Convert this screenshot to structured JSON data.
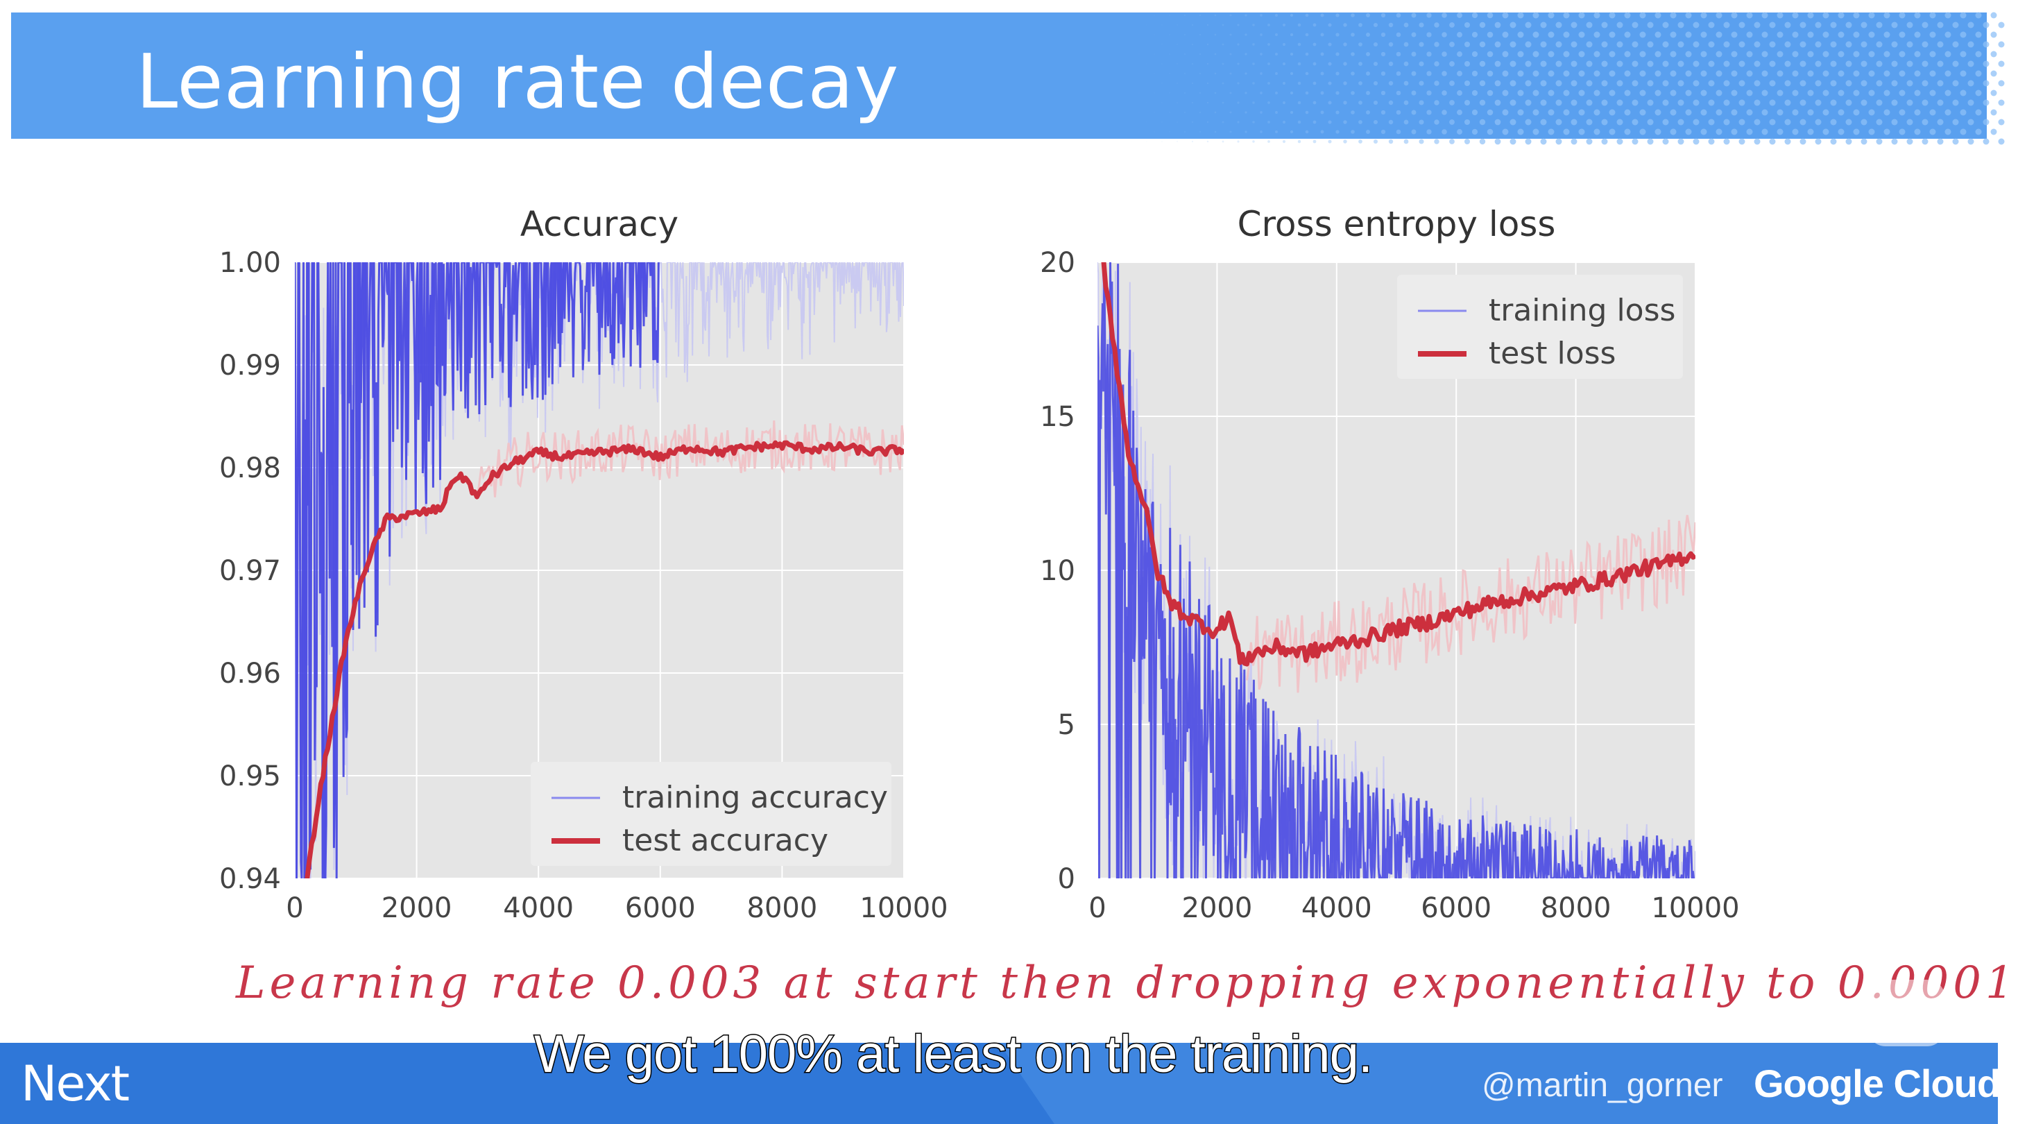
{
  "slide_title": "Learning rate decay",
  "subtitle": "Learning rate 0.003 at start then dropping exponentially to 0.0001",
  "caption": "We got 100% at least on the training.",
  "footer": {
    "event_logo": "Next",
    "handle": "@martin_gorner",
    "brand": "Google Cloud"
  },
  "icons": [
    "play-icon"
  ],
  "colors": {
    "header": "#5aa0ef",
    "footer": "#3f86e0",
    "training": "#3a3ae0",
    "test": "#cc2f3d",
    "plot_bg": "#e5e5e5",
    "subtitle": "#c8374a"
  },
  "chart_data": [
    {
      "type": "line",
      "title": "Accuracy",
      "xlim": [
        0,
        10000
      ],
      "ylim": [
        0.94,
        1.0
      ],
      "xticks": [
        "0",
        "2000",
        "4000",
        "6000",
        "8000",
        "10000"
      ],
      "yticks": [
        "1.00",
        "0.99",
        "0.98",
        "0.97",
        "0.96",
        "0.95",
        "0.94"
      ],
      "legend": "bottom-right",
      "grid": true,
      "series": [
        {
          "name": "training accuracy",
          "kind": "noisy",
          "color": "#3a3ae0",
          "x": [
            0,
            500,
            1000,
            1500,
            2000,
            3000,
            4000,
            5000,
            6000,
            8000,
            10000
          ],
          "values": [
            0.94,
            0.96,
            0.975,
            0.985,
            0.99,
            0.995,
            0.996,
            0.997,
            0.998,
            0.999,
            0.999
          ],
          "spread": [
            0.04,
            0.04,
            0.03,
            0.02,
            0.015,
            0.012,
            0.01,
            0.008,
            0.008,
            0.006,
            0.006
          ]
        },
        {
          "name": "test accuracy",
          "kind": "smooth",
          "color": "#cc2f3d",
          "x": [
            200,
            400,
            600,
            800,
            1000,
            1200,
            1500,
            2000,
            2400,
            2600,
            2800,
            3000,
            3200,
            3600,
            4000,
            4400,
            5000,
            5600,
            6000,
            6500,
            7000,
            7500,
            8000,
            8500,
            9000,
            9500,
            10000
          ],
          "values": [
            0.94,
            0.948,
            0.955,
            0.962,
            0.967,
            0.971,
            0.975,
            0.9755,
            0.976,
            0.979,
            0.979,
            0.977,
            0.979,
            0.9805,
            0.9815,
            0.981,
            0.9815,
            0.9818,
            0.981,
            0.982,
            0.9815,
            0.982,
            0.9822,
            0.9818,
            0.982,
            0.9815,
            0.9818
          ]
        }
      ]
    },
    {
      "type": "line",
      "title": "Cross entropy loss",
      "xlim": [
        0,
        10000
      ],
      "ylim": [
        0,
        20
      ],
      "xticks": [
        "0",
        "2000",
        "4000",
        "6000",
        "8000",
        "10000"
      ],
      "yticks": [
        "20",
        "15",
        "10",
        "5",
        "0"
      ],
      "legend": "top-right",
      "grid": true,
      "series": [
        {
          "name": "training loss",
          "kind": "noisy",
          "color": "#3a3ae0",
          "x": [
            0,
            300,
            700,
            1000,
            1500,
            2000,
            2500,
            3000,
            4000,
            5000,
            6000,
            8000,
            10000
          ],
          "values": [
            20,
            15,
            11,
            8,
            6,
            4.5,
            3.5,
            2.5,
            1.5,
            1,
            0.7,
            0.4,
            0.3
          ],
          "spread": [
            6,
            6,
            5,
            5,
            4.5,
            4,
            3.5,
            3,
            2.5,
            2,
            1.5,
            1.2,
            1
          ]
        },
        {
          "name": "test loss",
          "kind": "smooth",
          "color": "#cc2f3d",
          "x": [
            100,
            300,
            500,
            800,
            1000,
            1200,
            1500,
            2000,
            2200,
            2400,
            2600,
            3000,
            3500,
            4000,
            4500,
            5000,
            5500,
            6000,
            6500,
            7000,
            7500,
            8000,
            8500,
            9000,
            9500,
            10000
          ],
          "values": [
            20,
            17,
            14,
            12,
            10,
            9,
            8.5,
            8,
            8.6,
            7,
            7.3,
            7.5,
            7.3,
            7.6,
            7.8,
            8.1,
            8.3,
            8.6,
            8.9,
            9.1,
            9.3,
            9.5,
            9.7,
            10,
            10.2,
            10.6
          ]
        }
      ]
    }
  ]
}
